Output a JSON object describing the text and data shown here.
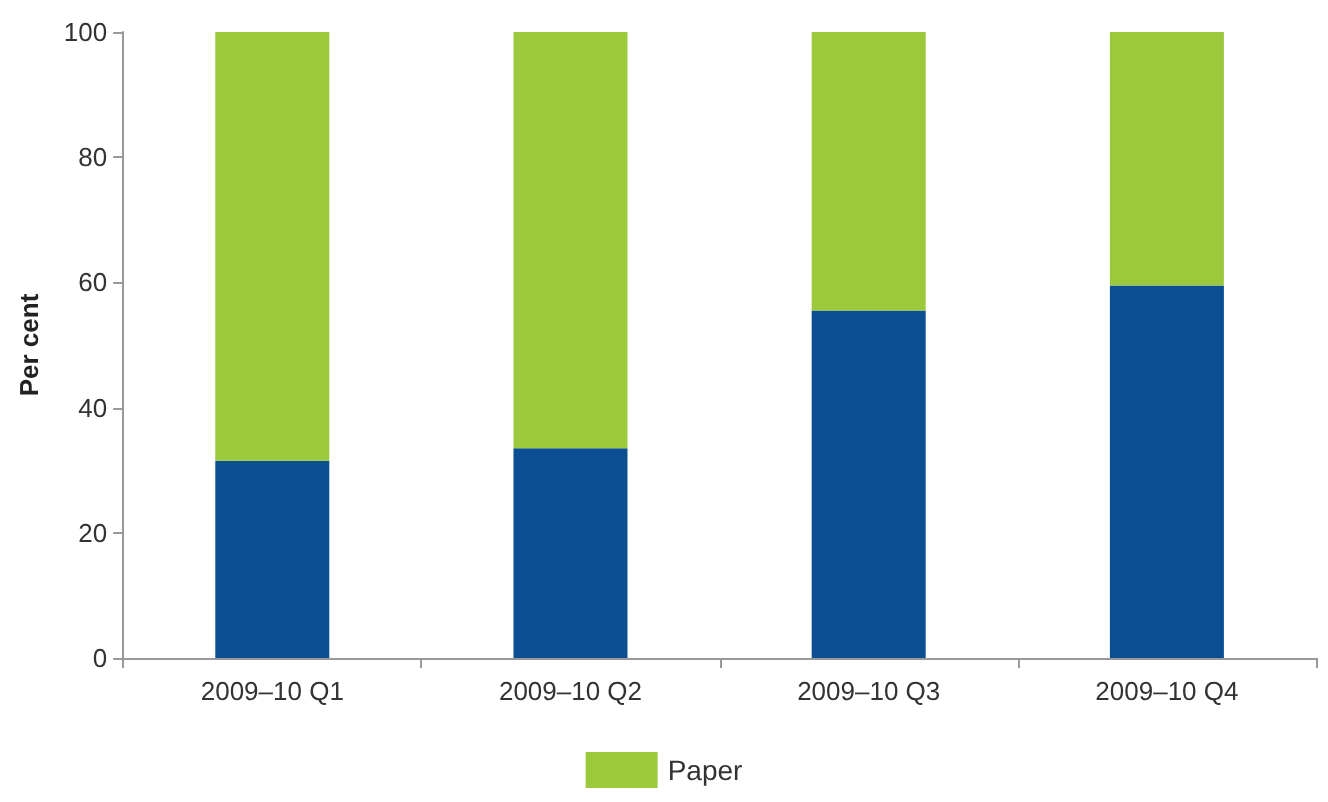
{
  "chart_data": {
    "type": "bar",
    "stacked": true,
    "ylabel": "Per cent",
    "categories": [
      "2009–10 Q1",
      "2009–10 Q2",
      "2009–10 Q3",
      "2009–10 Q4"
    ],
    "series": [
      {
        "color": "#0a4f92",
        "values": [
          31.5,
          33.5,
          55.5,
          59.5
        ]
      },
      {
        "name": "Paper",
        "color": "#9cc93c",
        "values": [
          68.5,
          66.5,
          44.5,
          40.5
        ]
      }
    ],
    "ylim": [
      0,
      100
    ],
    "yticks": [
      0,
      20,
      40,
      60,
      80,
      100
    ],
    "grid": false,
    "legend": "bottom"
  }
}
